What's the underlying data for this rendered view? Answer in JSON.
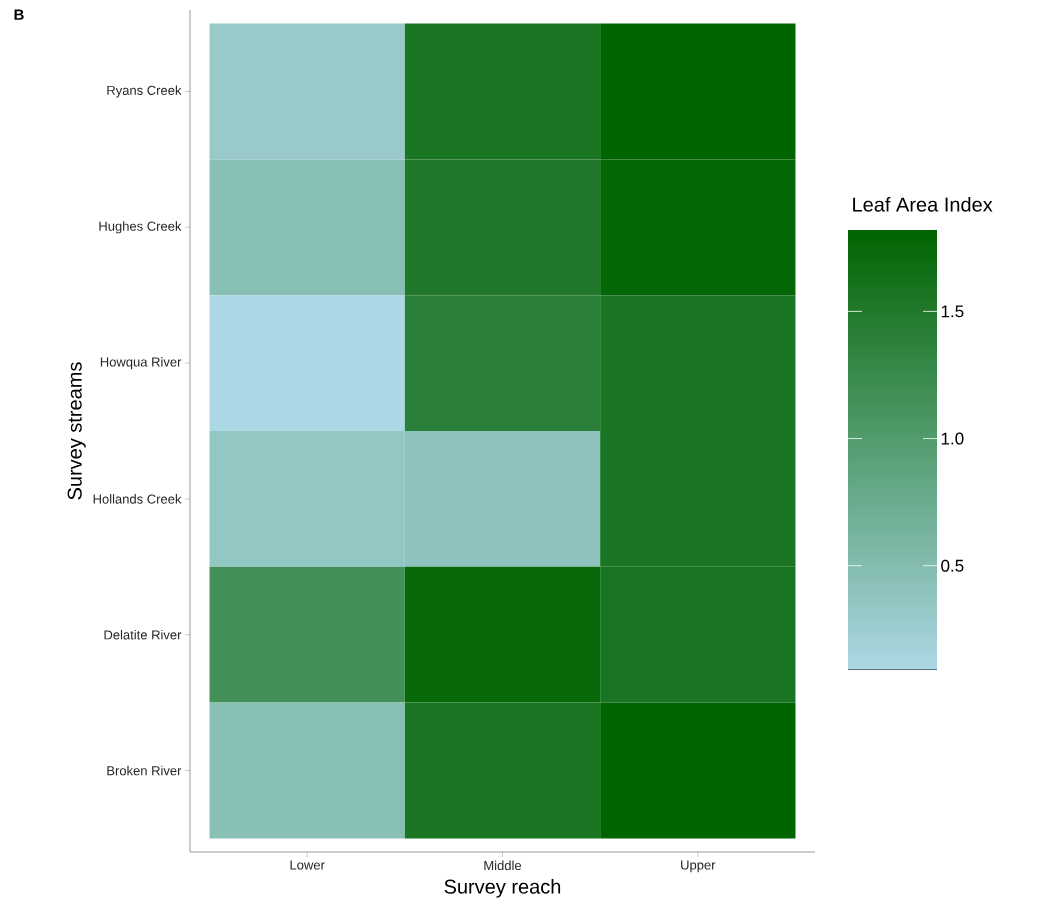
{
  "chart_data": {
    "type": "heatmap",
    "title": "B",
    "xlabel": "Survey reach",
    "ylabel": "Survey streams",
    "clabel": "Leaf Area Index",
    "categories": [
      "Lower",
      "Middle",
      "Upper"
    ],
    "y_categories": [
      "Ryans Creek",
      "Hughes Creek",
      "Howqua River",
      "Hollands Creek",
      "Delatite River",
      "Broken River"
    ],
    "cells": [
      [
        0.3,
        1.55,
        1.82
      ],
      [
        0.45,
        1.5,
        1.78
      ],
      [
        0.1,
        1.4,
        1.55
      ],
      [
        0.35,
        0.4,
        1.55
      ],
      [
        1.15,
        1.75,
        1.57
      ],
      [
        0.45,
        1.55,
        1.82
      ]
    ],
    "clim": [
      0.09,
      1.82
    ],
    "cticks": [
      {
        "value": 0.5,
        "label": "0.5"
      },
      {
        "value": 1.0,
        "label": "1.0"
      },
      {
        "value": 1.5,
        "label": "1.5"
      }
    ]
  }
}
